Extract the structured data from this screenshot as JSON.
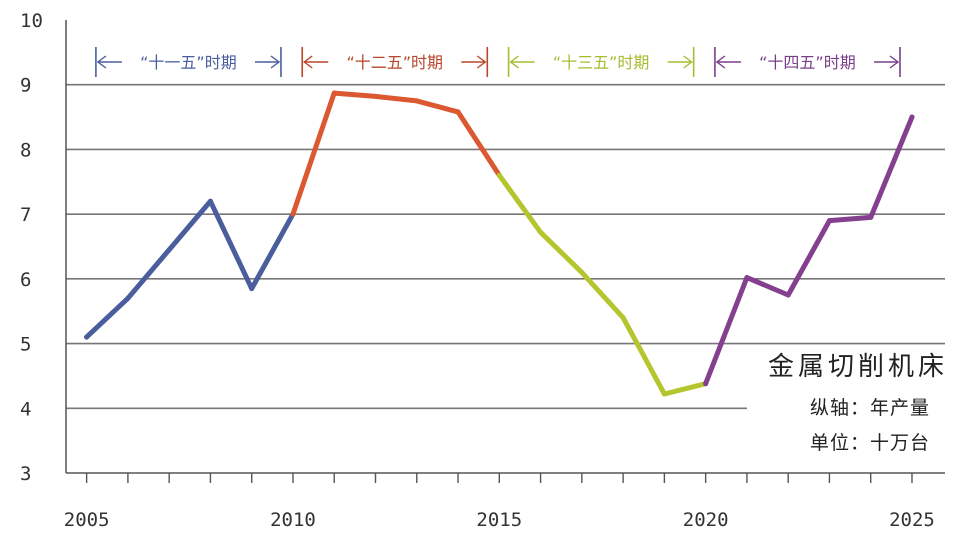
{
  "chart_data": {
    "type": "line",
    "title": "",
    "xlabel": "",
    "ylabel": "",
    "xlim": [
      2004.5,
      2025.8
    ],
    "ylim": [
      3,
      10
    ],
    "y_ticks": [
      "3",
      "4",
      "5",
      "6",
      "7",
      "8",
      "9",
      "10"
    ],
    "x_ticks": [
      "2005",
      "2010",
      "2015",
      "2020",
      "2025"
    ],
    "grid": "horizontal",
    "periods": [
      {
        "label": "“十一五”时期",
        "start": 2006,
        "end": 2010,
        "color": "#4A5E9E"
      },
      {
        "label": "“十二五”时期",
        "start": 2011,
        "end": 2015,
        "color": "#B8462A"
      },
      {
        "label": "“十三五”时期",
        "start": 2016,
        "end": 2020,
        "color": "#A9BB30"
      },
      {
        "label": "“十四五”时期",
        "start": 2021,
        "end": 2025,
        "color": "#7A3E8A"
      }
    ],
    "series": [
      {
        "color": "#4A5E9E",
        "points": [
          [
            2005,
            5.1
          ],
          [
            2006,
            5.7
          ],
          [
            2007,
            6.45
          ],
          [
            2008,
            7.2
          ],
          [
            2009,
            5.85
          ],
          [
            2010,
            7.0
          ]
        ]
      },
      {
        "color": "#DB5830",
        "points": [
          [
            2010,
            7.0
          ],
          [
            2011,
            8.87
          ],
          [
            2012,
            8.82
          ],
          [
            2013,
            8.75
          ],
          [
            2014,
            8.58
          ],
          [
            2015,
            7.6
          ]
        ]
      },
      {
        "color": "#B4C52E",
        "points": [
          [
            2015,
            7.6
          ],
          [
            2016,
            6.72
          ],
          [
            2017,
            6.1
          ],
          [
            2018,
            5.4
          ],
          [
            2019,
            4.22
          ],
          [
            2020,
            4.38
          ]
        ]
      },
      {
        "color": "#84408F",
        "points": [
          [
            2020,
            4.38
          ],
          [
            2021,
            6.02
          ],
          [
            2022,
            5.75
          ],
          [
            2023,
            6.9
          ],
          [
            2024,
            6.95
          ],
          [
            2025,
            8.5
          ]
        ]
      }
    ],
    "annotation": {
      "title": "金属切削机床",
      "lines": [
        "纵轴：年产量",
        "单位：十万台"
      ]
    }
  }
}
